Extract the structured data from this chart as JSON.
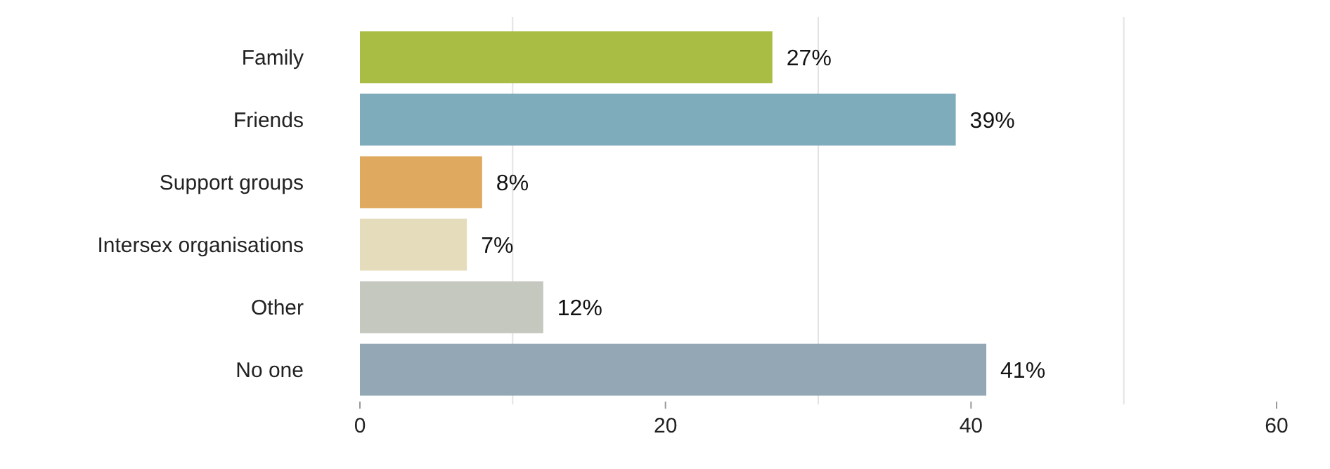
{
  "chart_data": {
    "type": "bar",
    "orientation": "horizontal",
    "categories": [
      "Family",
      "Friends",
      "Support groups",
      "Intersex organisations",
      "Other",
      "No one"
    ],
    "values": [
      27,
      39,
      8,
      7,
      12,
      41
    ],
    "colors": [
      "#a9bd45",
      "#7facba",
      "#dfaa5f",
      "#e5dcbb",
      "#c5c8be",
      "#93a8b4"
    ],
    "value_labels": [
      "27%",
      "39%",
      "8%",
      "7%",
      "12%",
      "41%"
    ],
    "xlim": [
      0,
      60
    ],
    "xticks": [
      0,
      {
        "value": 10,
        "label": null
      },
      20,
      {
        "value": 30,
        "label": null
      },
      40,
      {
        "value": 50,
        "label": null
      },
      60
    ],
    "grid": "x"
  }
}
